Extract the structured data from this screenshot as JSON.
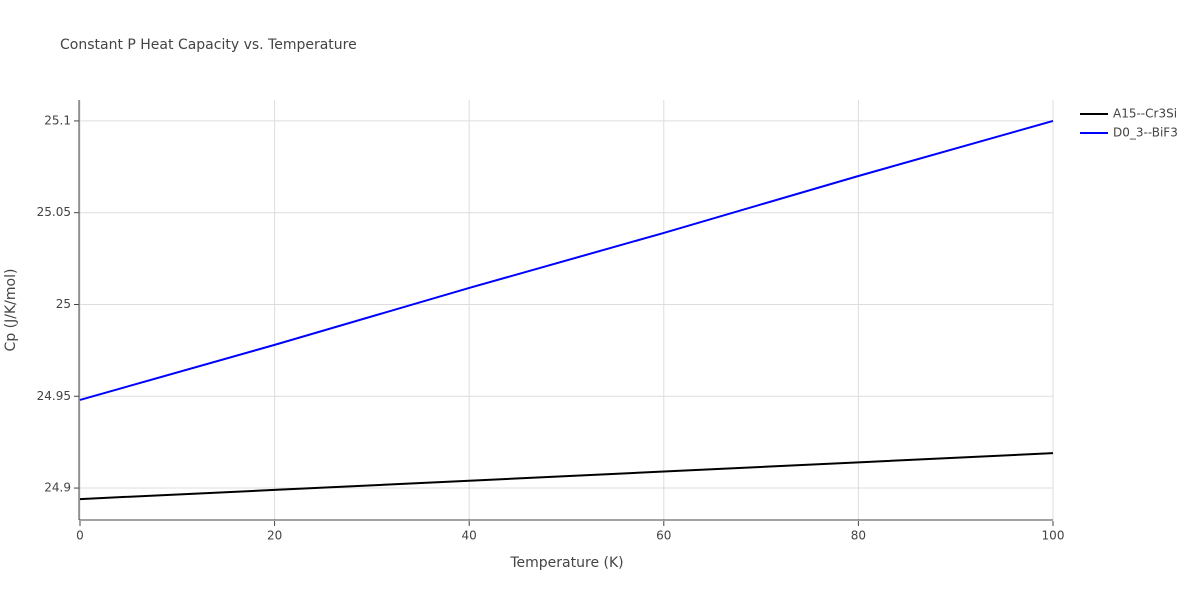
{
  "chart_data": {
    "type": "line",
    "title": "Constant P Heat Capacity vs. Temperature",
    "x_label": "Temperature (K)",
    "y_label": "Cp (J/K/mol)",
    "x": [
      0,
      20,
      40,
      60,
      80,
      100
    ],
    "series": [
      {
        "name": "A15--Cr3Si",
        "color": "#000000",
        "values": [
          24.894,
          24.899,
          24.904,
          24.909,
          24.914,
          24.919
        ]
      },
      {
        "name": "D0_3--BiF3",
        "color": "#0000ff",
        "values": [
          24.948,
          24.978,
          25.009,
          25.039,
          25.07,
          25.1
        ]
      }
    ],
    "xlim": [
      0,
      100
    ],
    "xticks": [
      0,
      20,
      40,
      60,
      80,
      100
    ],
    "ylim": [
      24.8826,
      25.1114
    ],
    "yticks": [
      24.9,
      24.95,
      25,
      25.05,
      25.1
    ],
    "grid": true,
    "legend": "top-right"
  }
}
